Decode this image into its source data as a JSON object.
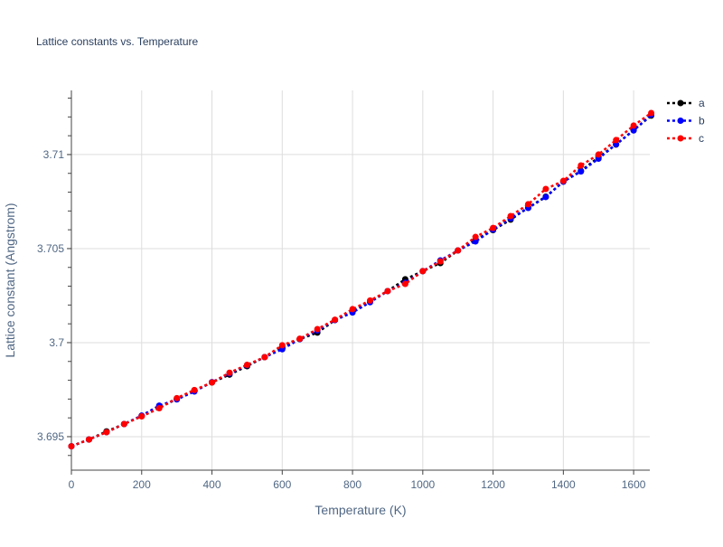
{
  "chart_data": {
    "type": "line",
    "title": "Lattice constants vs. Temperature",
    "xlabel": "Temperature (K)",
    "ylabel": "Lattice constant (Angstrom)",
    "xlim": [
      0,
      1646
    ],
    "ylim": [
      3.69322,
      3.71341
    ],
    "xticks": [
      0,
      200,
      400,
      600,
      800,
      1000,
      1200,
      1400,
      1600
    ],
    "xtick_labels": [
      "0",
      "200",
      "400",
      "600",
      "800",
      "1000",
      "1200",
      "1400",
      "1600"
    ],
    "yticks": [
      3.695,
      3.7,
      3.705,
      3.71
    ],
    "ytick_labels": [
      "3.695",
      "3.7",
      "3.705",
      "3.71"
    ],
    "grid": true,
    "legend_position": "top-right",
    "x": [
      0,
      50,
      100,
      150,
      200,
      250,
      300,
      350,
      400,
      450,
      500,
      550,
      600,
      650,
      700,
      750,
      800,
      850,
      900,
      950,
      1000,
      1050,
      1100,
      1150,
      1200,
      1250,
      1300,
      1350,
      1400,
      1450,
      1500,
      1550,
      1600,
      1650
    ],
    "series": [
      {
        "name": "a",
        "color": "#000000",
        "values": [
          3.69449,
          3.69485,
          3.69528,
          3.69567,
          3.6961,
          3.69655,
          3.697,
          3.69745,
          3.69788,
          3.6983,
          3.69875,
          3.69923,
          3.69975,
          3.70019,
          3.70053,
          3.7012,
          3.70165,
          3.70221,
          3.70274,
          3.70337,
          3.7038,
          3.70423,
          3.7049,
          3.70545,
          3.70598,
          3.70654,
          3.70718,
          3.70776,
          3.70856,
          3.70913,
          3.70985,
          3.71053,
          3.7113,
          3.71207
        ]
      },
      {
        "name": "b",
        "color": "#0000ff",
        "values": [
          3.69449,
          3.69485,
          3.69524,
          3.69567,
          3.69612,
          3.69665,
          3.69698,
          3.6974,
          3.6979,
          3.69836,
          3.6988,
          3.69923,
          3.69965,
          3.70019,
          3.70065,
          3.7012,
          3.7016,
          3.70215,
          3.70274,
          3.70318,
          3.7038,
          3.70437,
          3.7049,
          3.70538,
          3.70601,
          3.7066,
          3.70716,
          3.70774,
          3.70856,
          3.7091,
          3.70978,
          3.71055,
          3.71128,
          3.71212
        ]
      },
      {
        "name": "c",
        "color": "#ff0000",
        "values": [
          3.69449,
          3.69485,
          3.69524,
          3.69567,
          3.69608,
          3.69651,
          3.69705,
          3.69748,
          3.69788,
          3.6984,
          3.69882,
          3.69923,
          3.69986,
          3.70021,
          3.70072,
          3.70122,
          3.70178,
          3.70224,
          3.70274,
          3.70312,
          3.7038,
          3.70432,
          3.7049,
          3.70562,
          3.7061,
          3.70673,
          3.70736,
          3.70817,
          3.7086,
          3.70942,
          3.71,
          3.71077,
          3.71154,
          3.71221
        ]
      }
    ]
  }
}
